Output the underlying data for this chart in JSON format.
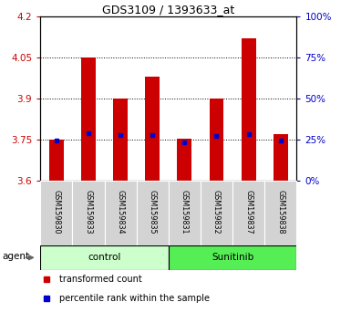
{
  "title": "GDS3109 / 1393633_at",
  "samples": [
    "GSM159830",
    "GSM159833",
    "GSM159834",
    "GSM159835",
    "GSM159831",
    "GSM159832",
    "GSM159837",
    "GSM159838"
  ],
  "transformed_count": [
    3.75,
    4.05,
    3.9,
    3.98,
    3.755,
    3.9,
    4.12,
    3.77
  ],
  "percentile_rank": [
    3.748,
    3.775,
    3.768,
    3.768,
    3.742,
    3.762,
    3.77,
    3.748
  ],
  "ymin": 3.6,
  "ymax": 4.2,
  "yticks": [
    3.6,
    3.75,
    3.9,
    4.05,
    4.2
  ],
  "right_yticks": [
    0,
    25,
    50,
    75,
    100
  ],
  "bar_color": "#cc0000",
  "blue_color": "#0000cc",
  "bar_width": 0.45,
  "legend_red": "transformed count",
  "legend_blue": "percentile rank within the sample",
  "ctrl_color": "#ccffcc",
  "sun_color": "#55ee55",
  "grid_ticks": [
    3.75,
    3.9,
    4.05
  ],
  "left_tick_color": "#cc0000",
  "right_tick_color": "#0000cc"
}
